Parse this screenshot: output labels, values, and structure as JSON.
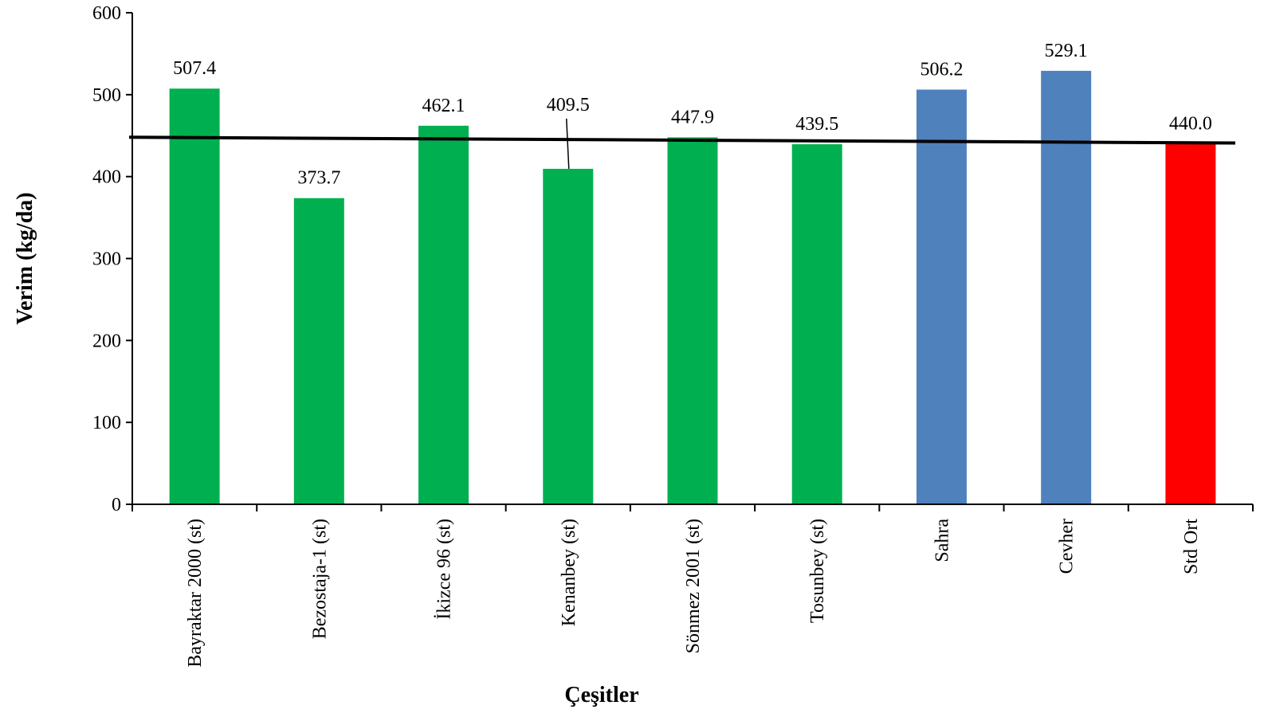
{
  "chart_data": {
    "type": "bar",
    "title": "",
    "xlabel": "Çeşitler",
    "ylabel": "Verim (kg/da)",
    "ylim": [
      0,
      600
    ],
    "yticks": [
      0,
      100,
      200,
      300,
      400,
      500,
      600
    ],
    "grid": false,
    "legend": "none",
    "categories": [
      "Bayraktar 2000 (st)",
      "Bezostaja-1 (st)",
      "İkizce 96 (st)",
      "Kenanbey (st)",
      "Sönmez 2001 (st)",
      "Tosunbey (st)",
      "Sahra",
      "Cevher",
      "Std Ort"
    ],
    "values": [
      507.4,
      373.7,
      462.1,
      409.5,
      447.9,
      439.5,
      506.2,
      529.1,
      440.0
    ],
    "data_labels": [
      "507.4",
      "373.7",
      "462.1",
      "409.5",
      "447.9",
      "439.5",
      "506.2",
      "529.1",
      "440.0"
    ],
    "bar_colors": [
      "#00b050",
      "#00b050",
      "#00b050",
      "#00b050",
      "#00b050",
      "#00b050",
      "#4f81bd",
      "#4f81bd",
      "#ff0000"
    ],
    "reference_line": {
      "from_value": 448,
      "to_value": 441,
      "color": "#000000"
    }
  }
}
